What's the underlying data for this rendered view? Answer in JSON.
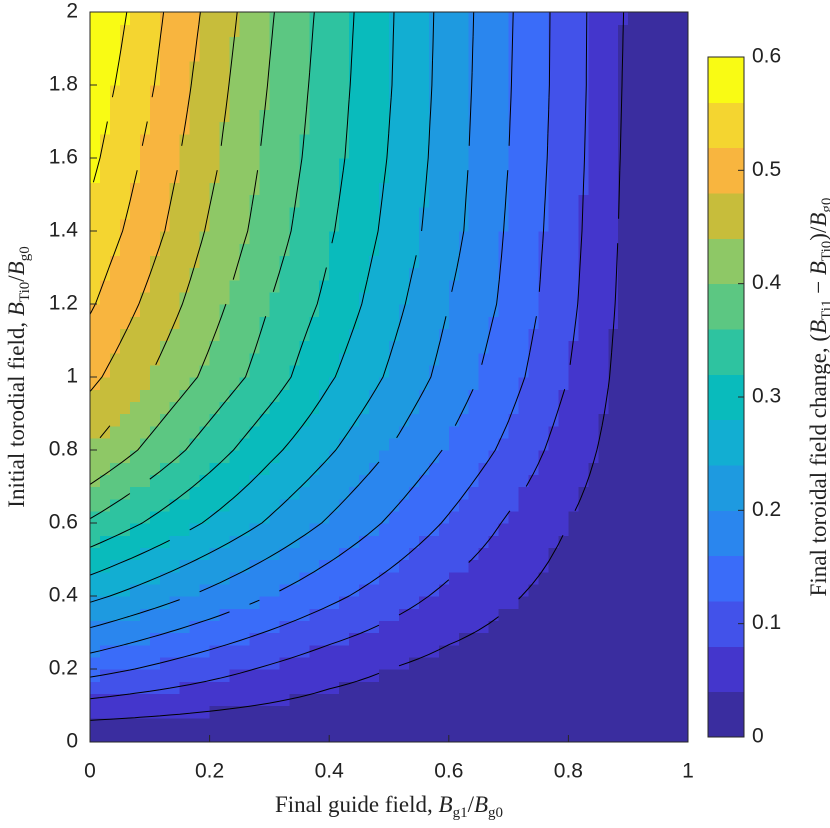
{
  "chart_data": {
    "type": "contourf",
    "xlabel": [
      "Final guide field, ",
      "B",
      "g1",
      "/",
      "B",
      "g0"
    ],
    "ylabel": [
      "Initial torodial field, ",
      "B",
      "Ti0",
      "/",
      "B",
      "g0"
    ],
    "colorbar_label": [
      "Final toroidal field change, (",
      "B",
      "Ti1",
      " − ",
      "B",
      "Ti0",
      ")/",
      "B",
      "g0"
    ],
    "x": [
      0,
      0.1,
      0.2,
      0.3,
      0.4,
      0.5,
      0.6,
      0.7,
      0.8,
      0.9,
      1
    ],
    "y": [
      0,
      0.2,
      0.4,
      0.6,
      0.8,
      1,
      1.2,
      1.4,
      1.6,
      1.8,
      2
    ],
    "z": [
      [
        0,
        0,
        0,
        0,
        0,
        0,
        0,
        0,
        0,
        0,
        0
      ],
      [
        0.135,
        0.115,
        0.095,
        0.075,
        0.055,
        0.04,
        0.025,
        0.015,
        0.008,
        0.003,
        0
      ],
      [
        0.25,
        0.22,
        0.19,
        0.16,
        0.13,
        0.1,
        0.07,
        0.045,
        0.022,
        0.008,
        0
      ],
      [
        0.355,
        0.315,
        0.275,
        0.235,
        0.195,
        0.155,
        0.115,
        0.075,
        0.04,
        0.012,
        0
      ],
      [
        0.44,
        0.39,
        0.34,
        0.29,
        0.245,
        0.2,
        0.155,
        0.11,
        0.06,
        0.018,
        0
      ],
      [
        0.49,
        0.44,
        0.39,
        0.34,
        0.285,
        0.235,
        0.185,
        0.135,
        0.08,
        0.022,
        0
      ],
      [
        0.525,
        0.47,
        0.415,
        0.36,
        0.31,
        0.255,
        0.2,
        0.15,
        0.09,
        0.026,
        0
      ],
      [
        0.55,
        0.495,
        0.435,
        0.38,
        0.325,
        0.27,
        0.215,
        0.155,
        0.095,
        0.029,
        0
      ],
      [
        0.57,
        0.51,
        0.45,
        0.39,
        0.335,
        0.278,
        0.22,
        0.16,
        0.098,
        0.031,
        0
      ],
      [
        0.585,
        0.525,
        0.46,
        0.398,
        0.34,
        0.283,
        0.223,
        0.163,
        0.1,
        0.033,
        0
      ],
      [
        0.6,
        0.535,
        0.47,
        0.405,
        0.345,
        0.285,
        0.225,
        0.165,
        0.1,
        0.035,
        0
      ]
    ],
    "levels": [
      0,
      0.04,
      0.08,
      0.12,
      0.16,
      0.2,
      0.24,
      0.28,
      0.32,
      0.36,
      0.4,
      0.44,
      0.48,
      0.52,
      0.56,
      0.6
    ],
    "colors": [
      "#3a2d9f",
      "#4436cc",
      "#4252ea",
      "#3a6cf9",
      "#2a86ee",
      "#1e9ae0",
      "#12aed2",
      "#09bbbc",
      "#2ec3a0",
      "#5cc782",
      "#8ec866",
      "#c7bd3b",
      "#f8b53f",
      "#f4d530",
      "#f9fb14"
    ],
    "xlim": [
      0,
      1
    ],
    "ylim": [
      0,
      2
    ],
    "clim": [
      0,
      0.6
    ],
    "xticks": [
      0,
      0.2,
      0.4,
      0.6,
      0.8,
      1
    ],
    "yticks": [
      0,
      0.2,
      0.4,
      0.6,
      0.8,
      1,
      1.2,
      1.4,
      1.6,
      1.8,
      2
    ],
    "cticks": [
      0,
      0.1,
      0.2,
      0.3,
      0.4,
      0.5,
      0.6
    ]
  }
}
